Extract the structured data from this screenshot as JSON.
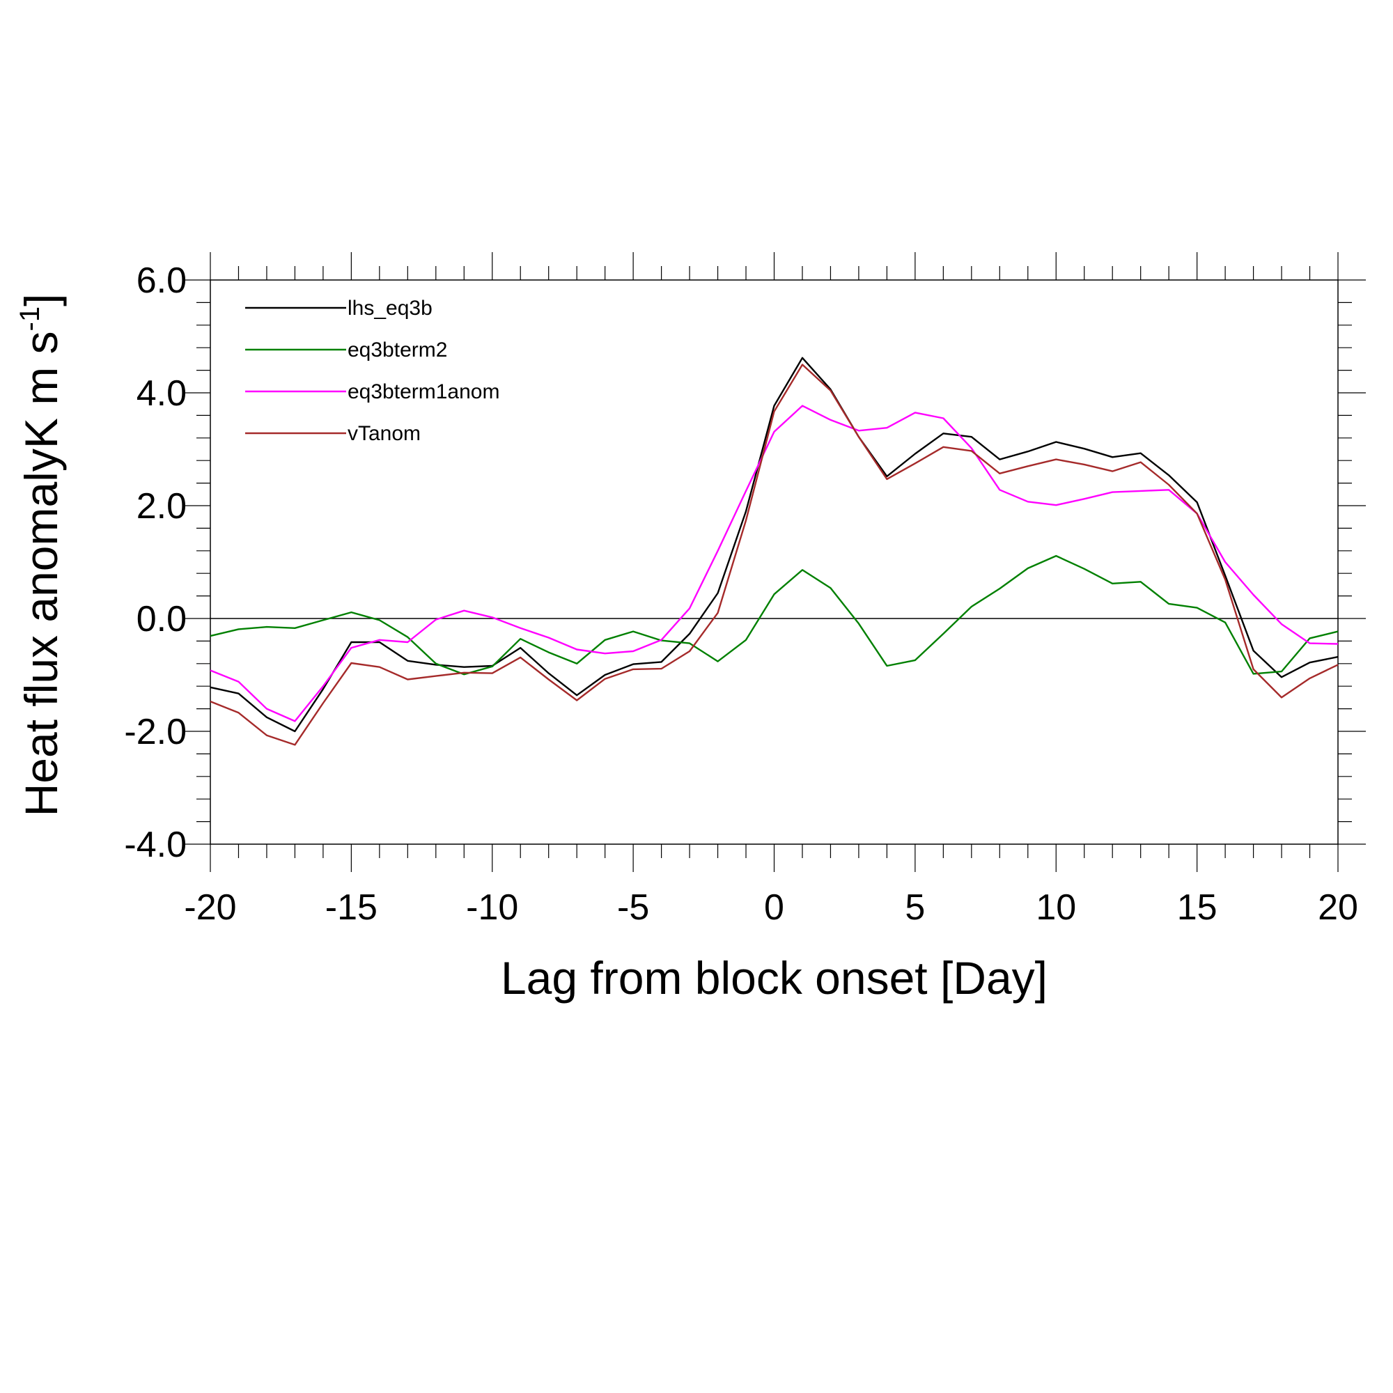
{
  "chart_data": {
    "type": "line",
    "title": "",
    "xlabel": "Lag from block onset [Day]",
    "ylabel_main": "Heat flux anomalyK m s",
    "ylabel_sup": "-1",
    "ylabel_close": "]",
    "xlim": [
      -20,
      20
    ],
    "ylim": [
      -4,
      6
    ],
    "x_ticks": [
      "-20",
      "-15",
      "-10",
      "-5",
      "0",
      "5",
      "10",
      "15",
      "20"
    ],
    "y_ticks": [
      "-4.0",
      "-2.0",
      "0.0",
      "2.0",
      "4.0",
      "6.0"
    ],
    "x": [
      -20,
      -19,
      -18,
      -17,
      -16,
      -15,
      -14,
      -13,
      -12,
      -11,
      -10,
      -9,
      -8,
      -7,
      -6,
      -5,
      -4,
      -3,
      -2,
      -1,
      0,
      1,
      2,
      3,
      4,
      5,
      6,
      7,
      8,
      9,
      10,
      11,
      12,
      13,
      14,
      15,
      16,
      17,
      18,
      19,
      20
    ],
    "reference_line_y": 0,
    "legend_position": "top-left",
    "grid": false,
    "series": [
      {
        "name": "lhs_eq3b",
        "color": "#000000",
        "values": [
          -1.22,
          -1.33,
          -1.75,
          -2.0,
          -1.25,
          -0.42,
          -0.42,
          -0.75,
          -0.82,
          -0.86,
          -0.84,
          -0.52,
          -0.97,
          -1.36,
          -1.0,
          -0.81,
          -0.77,
          -0.27,
          0.45,
          1.9,
          3.77,
          4.62,
          4.06,
          3.22,
          2.52,
          2.92,
          3.28,
          3.22,
          2.82,
          2.96,
          3.13,
          3.01,
          2.86,
          2.93,
          2.54,
          2.06,
          0.76,
          -0.57,
          -1.04,
          -0.78,
          -0.68
        ]
      },
      {
        "name": "eq3bterm2",
        "color": "#008000",
        "values": [
          -0.31,
          -0.19,
          -0.15,
          -0.17,
          -0.03,
          0.11,
          -0.03,
          -0.33,
          -0.8,
          -0.99,
          -0.85,
          -0.36,
          -0.6,
          -0.8,
          -0.38,
          -0.23,
          -0.39,
          -0.44,
          -0.76,
          -0.38,
          0.43,
          0.86,
          0.54,
          -0.09,
          -0.84,
          -0.74,
          -0.27,
          0.21,
          0.53,
          0.89,
          1.11,
          0.88,
          0.62,
          0.65,
          0.26,
          0.19,
          -0.07,
          -0.98,
          -0.94,
          -0.35,
          -0.23
        ]
      },
      {
        "name": "eq3bterm1anom",
        "color": "#ff00ff",
        "values": [
          -0.92,
          -1.12,
          -1.6,
          -1.82,
          -1.2,
          -0.52,
          -0.38,
          -0.42,
          -0.02,
          0.14,
          0.02,
          -0.17,
          -0.34,
          -0.55,
          -0.62,
          -0.58,
          -0.38,
          0.18,
          1.2,
          2.26,
          3.31,
          3.77,
          3.52,
          3.33,
          3.38,
          3.65,
          3.55,
          3.02,
          2.28,
          2.07,
          2.01,
          2.12,
          2.24,
          2.26,
          2.28,
          1.86,
          1.0,
          0.42,
          -0.1,
          -0.44,
          -0.45
        ]
      },
      {
        "name": "vTanom",
        "color": "#a52a2a",
        "values": [
          -1.47,
          -1.67,
          -2.07,
          -2.24,
          -1.5,
          -0.79,
          -0.86,
          -1.08,
          -1.02,
          -0.96,
          -0.97,
          -0.69,
          -1.08,
          -1.45,
          -1.07,
          -0.9,
          -0.89,
          -0.58,
          0.1,
          1.74,
          3.67,
          4.5,
          4.04,
          3.22,
          2.47,
          2.75,
          3.04,
          2.97,
          2.57,
          2.7,
          2.82,
          2.73,
          2.61,
          2.77,
          2.37,
          1.86,
          0.69,
          -0.9,
          -1.4,
          -1.06,
          -0.82
        ]
      }
    ]
  }
}
